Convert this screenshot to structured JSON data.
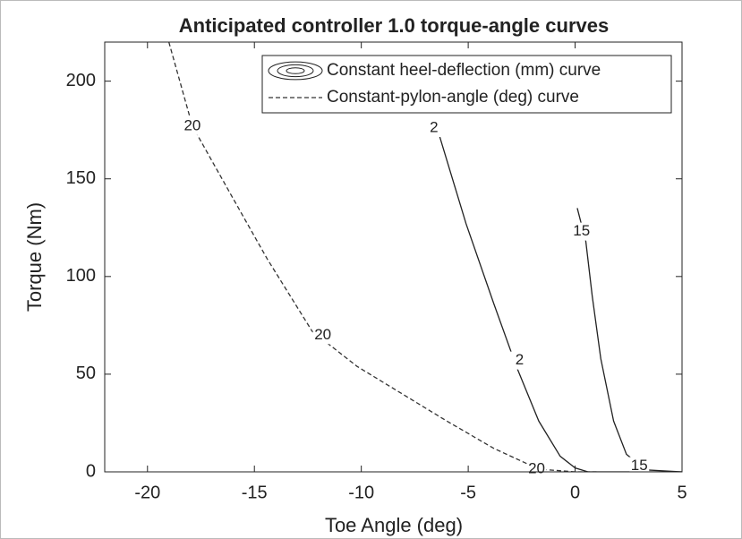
{
  "chart_data": {
    "type": "line",
    "title": "Anticipated controller 1.0 torque-angle curves",
    "x_label": "Toe Angle (deg)",
    "y_label": "Torque (Nm)",
    "xlim": [
      -22,
      5
    ],
    "ylim": [
      0,
      220
    ],
    "xticks": [
      -20,
      -15,
      -10,
      -5,
      0,
      5
    ],
    "yticks": [
      0,
      50,
      100,
      150,
      200
    ],
    "legend": "top-right",
    "series": [
      {
        "name": "Constant heel-deflection (mm) curve",
        "color": "#222222",
        "dash": false,
        "x": [
          -6.4,
          -5.1,
          -3.8,
          -2.75,
          -1.7,
          -0.7,
          0,
          0.6,
          5
        ],
        "values": [
          174,
          127,
          86,
          54,
          26,
          8,
          2,
          0,
          0
        ]
      },
      {
        "color": "#222222",
        "dash": false,
        "x": [
          0.1,
          0.5,
          0.8,
          1.2,
          1.8,
          2.4,
          3.3,
          5
        ],
        "values": [
          135,
          118,
          90,
          58,
          26,
          9,
          1,
          0
        ]
      },
      {
        "name": "Constant-pylon-angle (deg) curve",
        "color": "#333333",
        "dash": true,
        "x": [
          -19.0,
          -17.9,
          -16.0,
          -14.4,
          -12.3,
          -10.2,
          -8.1,
          -6.0,
          -3.8,
          -1.7,
          0,
          1
        ],
        "values": [
          220,
          177,
          140,
          109,
          72,
          54,
          40,
          26,
          12,
          1.4,
          0,
          0
        ]
      }
    ],
    "annotations": [
      {
        "text": "20",
        "x": -17.9,
        "y": 177
      },
      {
        "text": "20",
        "x": -11.8,
        "y": 70
      },
      {
        "text": "20",
        "x": -1.8,
        "y": 1.4
      },
      {
        "text": "2",
        "x": -6.6,
        "y": 176
      },
      {
        "text": "2",
        "x": -2.6,
        "y": 57
      },
      {
        "text": "15",
        "x": 0.3,
        "y": 123
      },
      {
        "text": "15",
        "x": 3.0,
        "y": 3
      }
    ]
  }
}
